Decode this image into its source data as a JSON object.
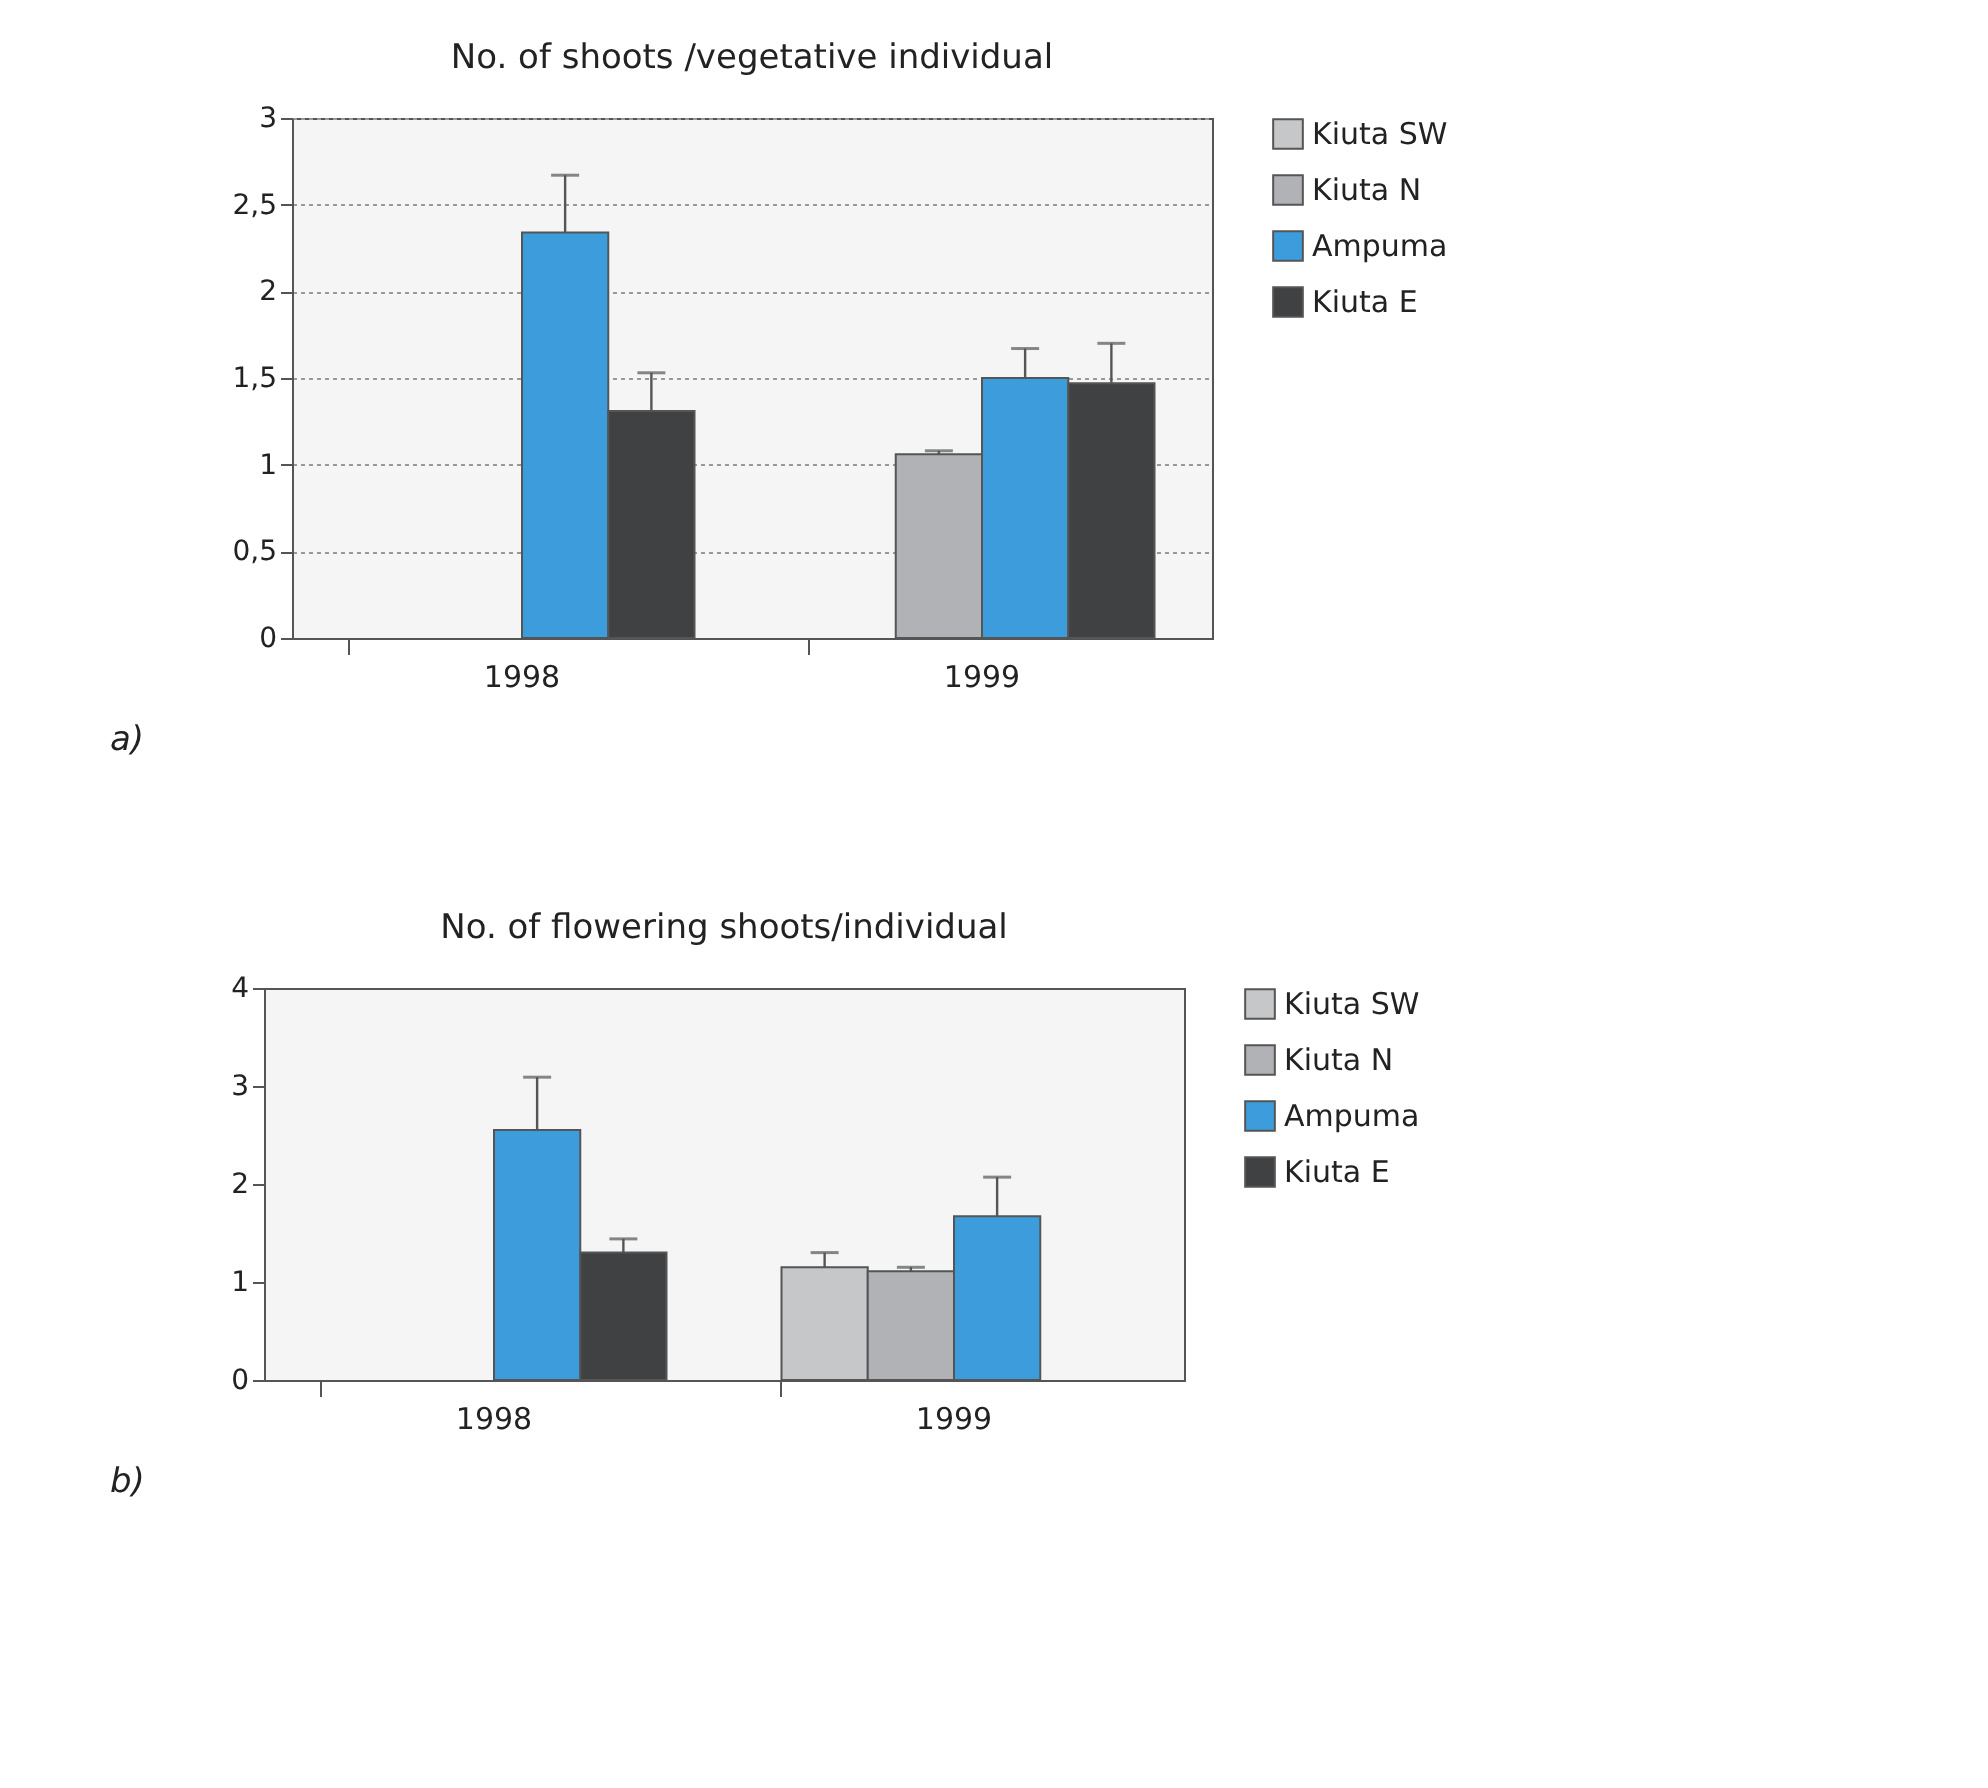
{
  "chart_data": [
    {
      "type": "bar",
      "title": "No. of shoots /vegetative individual",
      "categories": [
        "1998",
        "1999"
      ],
      "ylim": [
        0,
        3
      ],
      "yticks": [
        0,
        {
          "value": 0.5,
          "label": "0,5"
        },
        1,
        {
          "value": 1.5,
          "label": "1,5"
        },
        2,
        {
          "value": 2.5,
          "label": "2,5"
        },
        3
      ],
      "grid": "y",
      "legend": "right",
      "annotations": [
        "a)"
      ],
      "series": [
        {
          "name": "Kiuta SW",
          "color": "#c6c7c9",
          "values": [
            null,
            null
          ],
          "errors": [
            null,
            null
          ]
        },
        {
          "name": "Kiuta N",
          "color": "#b1b2b5",
          "values": [
            null,
            1.06
          ],
          "errors": [
            null,
            0.02
          ]
        },
        {
          "name": "Ampuma",
          "color": "#3d9ddc",
          "values": [
            2.34,
            1.5
          ],
          "errors": [
            0.33,
            0.17
          ]
        },
        {
          "name": "Kiuta E",
          "color": "#404143",
          "values": [
            1.31,
            1.47
          ],
          "errors": [
            0.22,
            0.23
          ]
        }
      ]
    },
    {
      "type": "bar",
      "title": "No. of flowering shoots/individual",
      "categories": [
        "1998",
        "1999"
      ],
      "ylim": [
        0,
        4
      ],
      "yticks": [
        0,
        1,
        2,
        3,
        4
      ],
      "grid": false,
      "legend": "right",
      "annotations": [
        "b)"
      ],
      "series": [
        {
          "name": "Kiuta SW",
          "color": "#c6c7c9",
          "values": [
            null,
            1.15
          ],
          "errors": [
            null,
            0.15
          ]
        },
        {
          "name": "Kiuta N",
          "color": "#b1b2b5",
          "values": [
            null,
            1.11
          ],
          "errors": [
            null,
            0.04
          ]
        },
        {
          "name": "Ampuma",
          "color": "#3d9ddc",
          "values": [
            2.55,
            1.67
          ],
          "errors": [
            0.54,
            0.4
          ]
        },
        {
          "name": "Kiuta E",
          "color": "#404143",
          "values": [
            1.3,
            null
          ],
          "errors": [
            0.14,
            null
          ]
        }
      ]
    }
  ]
}
